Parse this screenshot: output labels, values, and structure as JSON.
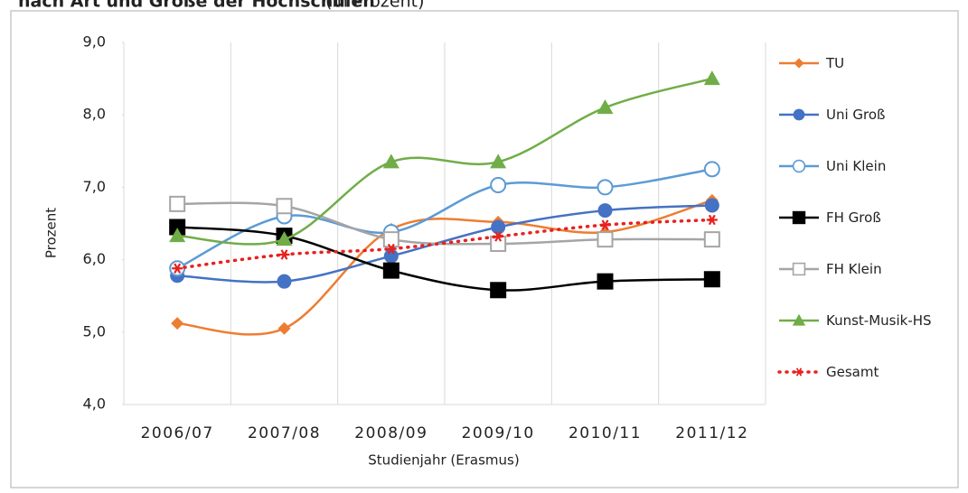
{
  "chart_data": {
    "type": "line",
    "title": "nach Art und Größe der Hochschulen",
    "subtitle": "(in Prozent)",
    "y_label": "Prozent",
    "x_label": "Studienjahr (Erasmus)",
    "categories": [
      "2006/07",
      "2007/08",
      "2008/09",
      "2009/10",
      "2010/11",
      "2011/12"
    ],
    "ylim": [
      4,
      9
    ],
    "yticks": [
      {
        "value": 4,
        "label": "4,0"
      },
      {
        "value": 5,
        "label": "5,0"
      },
      {
        "value": 6,
        "label": "6,0"
      },
      {
        "value": 7,
        "label": "7,0"
      },
      {
        "value": 8,
        "label": "8,0"
      },
      {
        "value": 9,
        "label": "9,0"
      }
    ],
    "grid": true,
    "legend": "right",
    "series": [
      {
        "name": "TU",
        "color": "#ed7d31",
        "marker": "diamond",
        "values": [
          5.12,
          5.05,
          6.42,
          6.52,
          6.38,
          6.82
        ]
      },
      {
        "name": "Uni Groß",
        "color": "#4472c4",
        "marker": "circle",
        "values": [
          5.78,
          5.7,
          6.05,
          6.45,
          6.68,
          6.75
        ]
      },
      {
        "name": "Uni Klein",
        "color": "#5b9bd5",
        "marker": "open-circle",
        "values": [
          5.88,
          6.6,
          6.38,
          7.03,
          7.0,
          7.25
        ]
      },
      {
        "name": "FH Groß",
        "color": "#000000",
        "marker": "square",
        "values": [
          6.45,
          6.33,
          5.85,
          5.58,
          5.7,
          5.73
        ]
      },
      {
        "name": "FH Klein",
        "color": "#a5a5a5",
        "marker": "open-square",
        "values": [
          6.77,
          6.74,
          6.28,
          6.22,
          6.28,
          6.28
        ]
      },
      {
        "name": "Kunst-Musik-HS",
        "color": "#70ad47",
        "marker": "triangle",
        "values": [
          6.33,
          6.28,
          7.35,
          7.35,
          8.1,
          8.5
        ]
      },
      {
        "name": "Gesamt",
        "color": "#e8211e",
        "marker": "asterisk",
        "dash": true,
        "values": [
          5.88,
          6.07,
          6.15,
          6.32,
          6.48,
          6.55
        ]
      }
    ]
  }
}
